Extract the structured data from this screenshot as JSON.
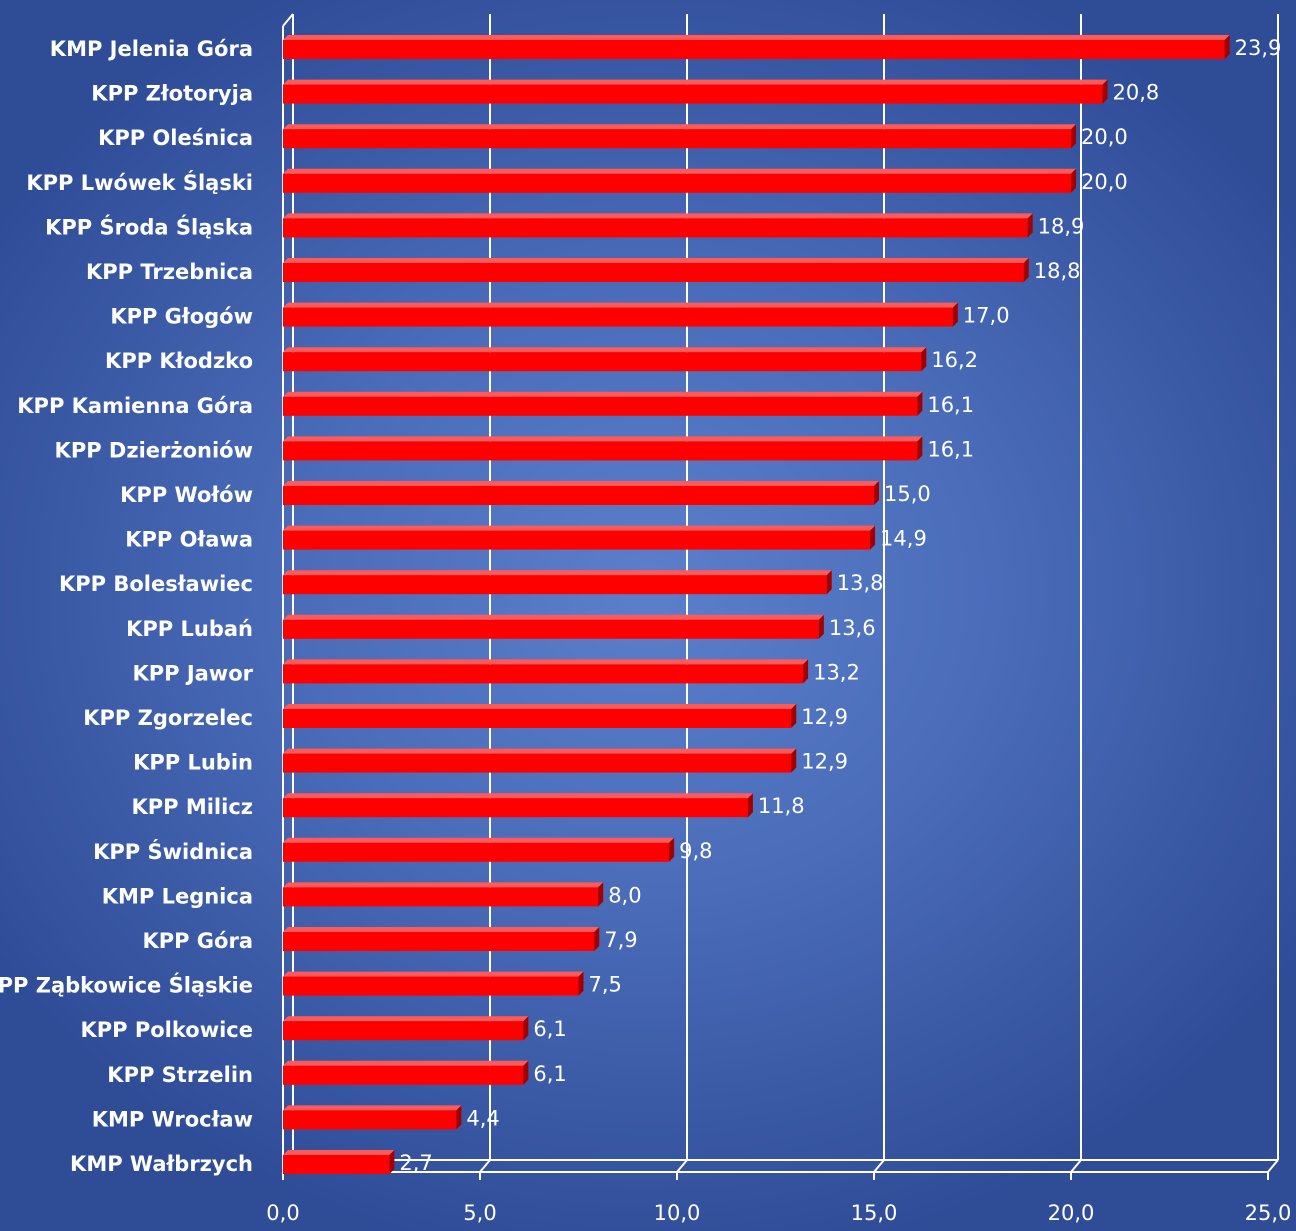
{
  "chart_data": {
    "type": "bar",
    "orientation": "horizontal",
    "style": "3d",
    "title": "",
    "xlabel": "",
    "ylabel": "",
    "xlim": [
      0,
      25
    ],
    "x_ticks": [
      "0,0",
      "5,0",
      "10,0",
      "15,0",
      "20,0",
      "25,0"
    ],
    "grid": "vertical",
    "legend": "none",
    "categories": [
      "KMP Jelenia Góra",
      "KPP Złotoryja",
      "KPP Oleśnica",
      "KPP Lwówek Śląski",
      "KPP Środa Śląska",
      "KPP Trzebnica",
      "KPP Głogów",
      "KPP Kłodzko",
      "KPP Kamienna Góra",
      "KPP Dzierżoniów",
      "KPP Wołów",
      "KPP Oława",
      "KPP Bolesławiec",
      "KPP Lubań",
      "KPP Jawor",
      "KPP Zgorzelec",
      "KPP Lubin",
      "KPP Milicz",
      "KPP Świdnica",
      "KMP Legnica",
      "KPP Góra",
      "KPP Ząbkowice Śląskie",
      "KPP Polkowice",
      "KPP Strzelin",
      "KMP Wrocław",
      "KMP Wałbrzych"
    ],
    "values": [
      23.9,
      20.8,
      20.0,
      20.0,
      18.9,
      18.8,
      17.0,
      16.2,
      16.1,
      16.1,
      15.0,
      14.9,
      13.8,
      13.6,
      13.2,
      12.9,
      12.9,
      11.8,
      9.8,
      8.0,
      7.9,
      7.5,
      6.1,
      6.1,
      4.4,
      2.7
    ],
    "value_labels": [
      "23,9",
      "20,8",
      "20,0",
      "20,0",
      "18,9",
      "18,8",
      "17,0",
      "16,2",
      "16,1",
      "16,1",
      "15,0",
      "14,9",
      "13,8",
      "13,6",
      "13,2",
      "12,9",
      "12,9",
      "11,8",
      "9,8",
      "8,0",
      "7,9",
      "7,5",
      "6,1",
      "6,1",
      "4,4",
      "2,7"
    ],
    "colors": {
      "bar": "#ff0000",
      "bar_top": "#ff5a5a",
      "bar_side": "#a00000",
      "grid": "#ffffff",
      "text": "#ffffff"
    }
  }
}
